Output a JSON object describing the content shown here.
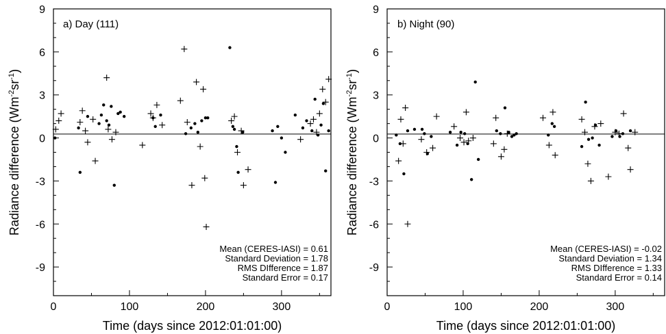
{
  "chart_data": [
    {
      "type": "scatter",
      "panel_label": "a) Day (111)",
      "xlabel": "Time (days since 2012:01:01:00)",
      "ylabel": "Radiance difference (Wm",
      "ylabel_sup1": "-2",
      "ylabel_mid": "sr",
      "ylabel_sup2": "-1",
      "ylabel_end": ")",
      "xlim": [
        0,
        365
      ],
      "ylim": [
        -11,
        9
      ],
      "x_ticks": [
        0,
        100,
        200,
        300
      ],
      "y_ticks": [
        9,
        6,
        3,
        0,
        -3,
        -6,
        -9
      ],
      "zero_line": true,
      "stats": [
        "Mean (CERES-IASI) = 0.61",
        "Standard Deviation = 1.78",
        "RMS DIfference = 1.87",
        "Standard Error = 0.17"
      ],
      "series": [
        {
          "marker": "dot",
          "x": [
            2,
            33,
            35,
            45,
            60,
            63,
            66,
            70,
            73,
            76,
            80,
            85,
            88,
            93,
            131,
            134,
            141,
            174,
            181,
            186,
            190,
            195,
            200,
            203,
            232,
            236,
            238,
            241,
            243,
            249,
            288,
            292,
            295,
            300,
            305,
            318,
            328,
            333,
            340,
            344,
            348,
            352,
            355,
            358,
            362
          ],
          "y": [
            0.0,
            0.7,
            -2.4,
            1.5,
            1.0,
            1.6,
            2.3,
            1.2,
            0.9,
            2.2,
            -3.3,
            1.7,
            1.8,
            1.5,
            1.4,
            0.8,
            1.6,
            0.3,
            0.7,
            1.0,
            0.4,
            1.2,
            1.4,
            1.4,
            6.3,
            0.8,
            0.6,
            -0.6,
            -2.4,
            0.4,
            0.5,
            -3.1,
            0.8,
            0.0,
            -1.0,
            1.6,
            0.7,
            1.2,
            0.5,
            2.7,
            0.2,
            0.9,
            2.4,
            -2.3,
            0.5
          ]
        },
        {
          "marker": "plus",
          "x": [
            3,
            7,
            10,
            35,
            38,
            42,
            45,
            52,
            55,
            70,
            72,
            77,
            82,
            117,
            128,
            131,
            136,
            143,
            167,
            172,
            176,
            182,
            188,
            193,
            197,
            199,
            201,
            234,
            238,
            242,
            247,
            250,
            256,
            325,
            338,
            342,
            346,
            350,
            354,
            358,
            362
          ],
          "y": [
            0.6,
            1.2,
            1.7,
            1.1,
            1.9,
            0.5,
            -0.3,
            1.3,
            -1.6,
            4.2,
            0.6,
            -0.1,
            0.4,
            -0.5,
            1.7,
            1.4,
            2.3,
            0.9,
            2.6,
            6.2,
            1.1,
            -3.3,
            3.9,
            -0.6,
            3.4,
            -2.8,
            -6.2,
            1.2,
            1.5,
            -1.0,
            0.5,
            -3.3,
            -2.2,
            -0.1,
            1.0,
            1.3,
            0.4,
            1.7,
            3.4,
            2.5,
            4.1
          ]
        }
      ]
    },
    {
      "type": "scatter",
      "panel_label": "b) Night (90)",
      "xlabel": "Time (days since 2012:01:01:00)",
      "ylabel": "Radiance difference (Wm",
      "ylabel_sup1": "-2",
      "ylabel_mid": "sr",
      "ylabel_sup2": "-1",
      "ylabel_end": ")",
      "xlim": [
        0,
        365
      ],
      "ylim": [
        -11,
        9
      ],
      "x_ticks": [
        0,
        100,
        200,
        300
      ],
      "y_ticks": [
        9,
        6,
        3,
        0,
        -3,
        -6,
        -9
      ],
      "zero_line": true,
      "stats": [
        "Mean (CERES-IASI) = -0.02",
        "Standard Deviation = 1.34",
        "RMS DIfference = 1.33",
        "Standard Error = 0.14"
      ],
      "series": [
        {
          "marker": "dot",
          "x": [
            12,
            17,
            22,
            27,
            36,
            46,
            49,
            53,
            58,
            83,
            92,
            97,
            102,
            106,
            111,
            116,
            120,
            144,
            149,
            155,
            160,
            164,
            167,
            170,
            212,
            217,
            220,
            256,
            261,
            265,
            270,
            274,
            279,
            296,
            301,
            306,
            310,
            320
          ],
          "y": [
            0.2,
            -0.4,
            -2.5,
            0.5,
            0.6,
            0.6,
            0.3,
            -1.1,
            0.1,
            0.4,
            -0.5,
            0.4,
            0.3,
            -0.4,
            -2.9,
            3.9,
            -1.5,
            0.5,
            0.3,
            2.1,
            0.4,
            0.1,
            0.2,
            0.3,
            0.2,
            1.0,
            0.8,
            -0.6,
            2.5,
            -0.1,
            0.0,
            0.9,
            -0.5,
            0.1,
            0.5,
            0.1,
            0.3,
            0.5
          ]
        },
        {
          "marker": "plus",
          "x": [
            15,
            18,
            21,
            24,
            27,
            45,
            52,
            60,
            65,
            88,
            96,
            101,
            104,
            107,
            113,
            140,
            143,
            150,
            154,
            158,
            205,
            213,
            218,
            221,
            256,
            260,
            264,
            268,
            273,
            281,
            291,
            300,
            305,
            311,
            317,
            320,
            326
          ],
          "y": [
            -1.6,
            1.3,
            -0.4,
            2.1,
            -6.0,
            -0.1,
            -1.0,
            -0.7,
            1.5,
            0.8,
            0.0,
            -0.3,
            1.8,
            -0.2,
            0.0,
            -0.4,
            1.4,
            -1.3,
            -0.8,
            0.3,
            1.4,
            -0.5,
            1.8,
            -1.2,
            1.3,
            0.4,
            -1.8,
            -3.0,
            0.8,
            1.0,
            -2.7,
            0.4,
            0.3,
            1.7,
            -0.7,
            -2.2,
            0.4
          ]
        }
      ]
    }
  ]
}
